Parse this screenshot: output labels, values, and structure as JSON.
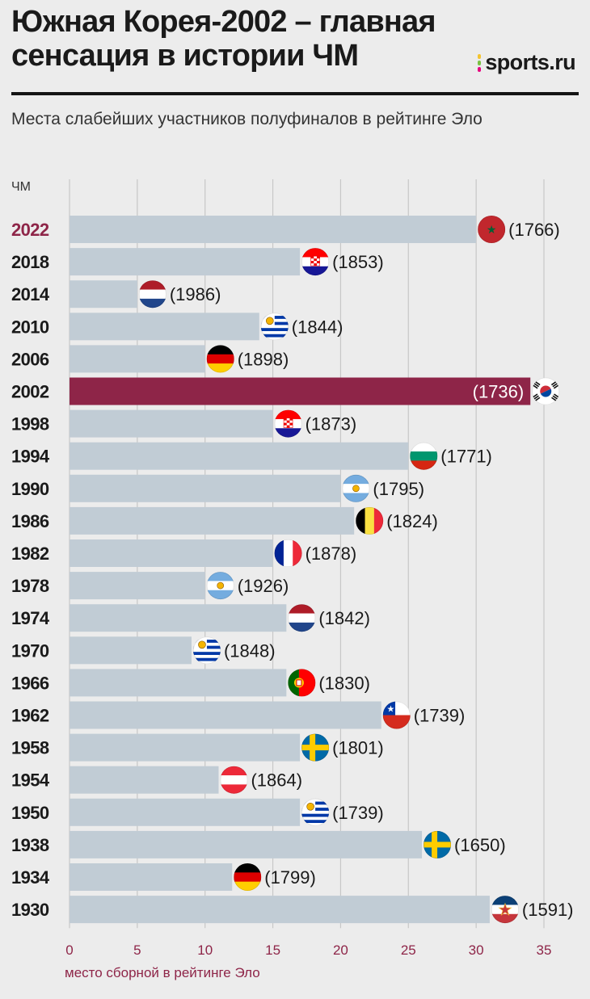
{
  "header": {
    "title_line1": "Южная Корея-2002 – главная",
    "title_line2": "сенсация в истории ЧМ",
    "logo_text": "sports.ru",
    "subtitle": "Места слабейших участников полуфиналов в рейтинге Эло"
  },
  "colors": {
    "bar": "#c1ccd5",
    "highlight": "#8e2548",
    "accent_text": "#8e2548",
    "gridline": "#c7c7c7",
    "logo_dots": [
      "#f4c430",
      "#7ac143",
      "#e6007e"
    ]
  },
  "chart_data": {
    "type": "bar",
    "orientation": "horizontal",
    "ylabel": "ЧМ",
    "xlabel": "место сборной в рейтинге Эло",
    "xlim": [
      0,
      35
    ],
    "xticks": [
      0,
      5,
      10,
      15,
      20,
      25,
      30,
      35
    ],
    "grid": true,
    "highlight_category": "2002",
    "highlight_label_category": "2022",
    "categories": [
      "2022",
      "2018",
      "2014",
      "2010",
      "2006",
      "2002",
      "1998",
      "1994",
      "1990",
      "1986",
      "1982",
      "1978",
      "1974",
      "1970",
      "1966",
      "1962",
      "1958",
      "1954",
      "1950",
      "1938",
      "1934",
      "1930"
    ],
    "values": [
      30,
      17,
      5,
      14,
      10,
      34,
      15,
      25,
      20,
      21,
      15,
      10,
      16,
      9,
      16,
      23,
      17,
      11,
      17,
      26,
      12,
      31
    ],
    "elo_labels": [
      "(1766)",
      "(1853)",
      "(1986)",
      "(1844)",
      "(1898)",
      "(1736)",
      "(1873)",
      "(1771)",
      "(1795)",
      "(1824)",
      "(1878)",
      "(1926)",
      "(1842)",
      "(1848)",
      "(1830)",
      "(1739)",
      "(1801)",
      "(1864)",
      "(1739)",
      "(1650)",
      "(1799)",
      "(1591)"
    ],
    "flags": [
      "morocco",
      "croatia",
      "netherlands",
      "uruguay",
      "germany",
      "south-korea",
      "croatia",
      "bulgaria",
      "argentina",
      "belgium",
      "france",
      "argentina",
      "netherlands",
      "uruguay",
      "portugal",
      "chile",
      "sweden",
      "austria",
      "uruguay",
      "sweden",
      "germany",
      "yugoslavia"
    ]
  }
}
